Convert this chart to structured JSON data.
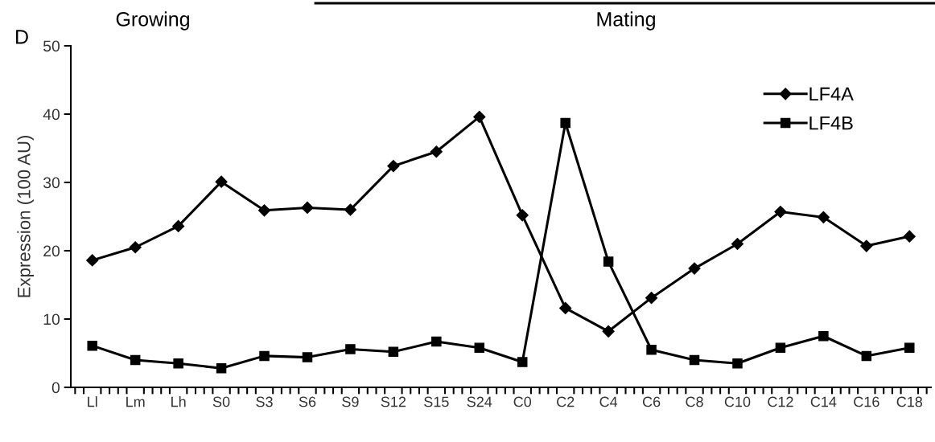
{
  "chart_data": {
    "type": "line",
    "ylabel": "Expression (100 AU)",
    "categories": [
      "Ll",
      "Lm",
      "Lh",
      "S0",
      "S3",
      "S6",
      "S9",
      "S12",
      "S15",
      "S24",
      "C0",
      "C2",
      "C4",
      "C6",
      "C8",
      "C10",
      "C12",
      "C14",
      "C16",
      "C18"
    ],
    "series": [
      {
        "name": "LF4A",
        "color": "#000000",
        "marker": "diamond",
        "values": [
          18.6,
          20.5,
          23.6,
          30.1,
          25.9,
          26.3,
          26.0,
          32.4,
          34.5,
          39.6,
          25.2,
          11.6,
          8.2,
          13.1,
          17.4,
          21.0,
          25.7,
          24.9,
          20.7,
          22.1
        ]
      },
      {
        "name": "LF4B",
        "color": "#000000",
        "marker": "square",
        "values": [
          6.1,
          4.0,
          3.5,
          2.8,
          4.6,
          4.4,
          5.6,
          5.2,
          6.7,
          5.8,
          3.7,
          38.7,
          18.4,
          5.5,
          4.0,
          3.5,
          5.8,
          7.5,
          4.6,
          5.8
        ]
      }
    ],
    "ylim": [
      0,
      50
    ],
    "yticks": [
      0,
      10,
      20,
      30,
      40,
      50
    ],
    "grid": false,
    "legend": "top right",
    "line_style": "solid",
    "annotations": [
      "D",
      "Growing",
      "Mating"
    ]
  }
}
